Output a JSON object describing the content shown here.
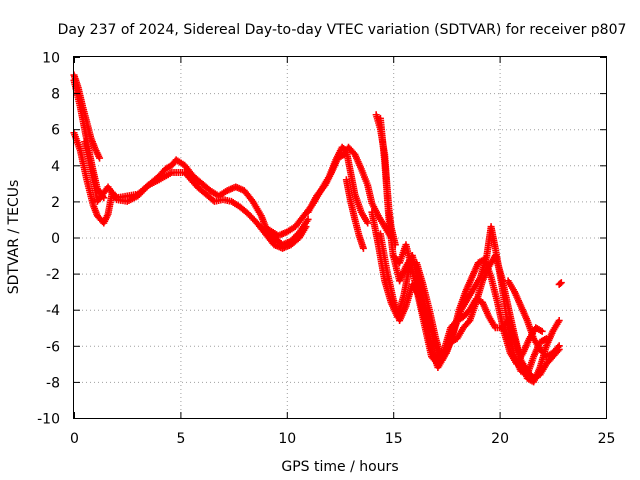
{
  "chart_data": {
    "type": "scatter",
    "title": "Day 237 of 2024, Sidereal Day-to-day VTEC variation (SDTVAR) for receiver p807",
    "xlabel": "GPS time / hours",
    "ylabel": "SDTVAR / TECUs",
    "xlim": [
      0,
      25
    ],
    "ylim": [
      -10,
      10
    ],
    "xticks": [
      0,
      5,
      10,
      15,
      20,
      25
    ],
    "yticks": [
      -10,
      -8,
      -6,
      -4,
      -2,
      0,
      2,
      4,
      6,
      8,
      10
    ],
    "xtick_labels": [
      "0",
      "5",
      "10",
      "15",
      "20",
      "25"
    ],
    "ytick_labels": [
      "-10",
      "-8",
      "-6",
      "-4",
      "-2",
      "0",
      "2",
      "4",
      "6",
      "8",
      "10"
    ],
    "grid": true,
    "marker": "+",
    "series": [
      {
        "name": "SDTVAR",
        "color": "#ff0000",
        "tracks": [
          [
            [
              0.0,
              9.0
            ],
            [
              0.2,
              8.3
            ],
            [
              0.4,
              7.3
            ],
            [
              0.6,
              6.4
            ],
            [
              0.8,
              5.5
            ],
            [
              1.0,
              4.9
            ],
            [
              1.2,
              4.4
            ]
          ],
          [
            [
              0.0,
              8.7
            ],
            [
              0.3,
              7.2
            ],
            [
              0.6,
              5.4
            ],
            [
              0.9,
              3.7
            ],
            [
              1.1,
              2.7
            ],
            [
              1.4,
              2.2
            ]
          ],
          [
            [
              0.0,
              5.8
            ],
            [
              0.3,
              4.8
            ],
            [
              0.6,
              3.2
            ],
            [
              0.9,
              1.8
            ],
            [
              1.1,
              1.2
            ],
            [
              1.4,
              0.8
            ],
            [
              1.6,
              1.3
            ],
            [
              1.8,
              2.5
            ],
            [
              2.0,
              2.2
            ],
            [
              2.5,
              2.3
            ],
            [
              3.0,
              2.4
            ],
            [
              3.3,
              2.7
            ],
            [
              3.6,
              3.0
            ],
            [
              4.0,
              3.4
            ],
            [
              4.3,
              3.8
            ],
            [
              4.6,
              4.0
            ],
            [
              4.8,
              4.3
            ],
            [
              5.2,
              4.0
            ],
            [
              5.6,
              3.4
            ],
            [
              6.0,
              3.0
            ],
            [
              6.4,
              2.6
            ],
            [
              6.8,
              2.3
            ],
            [
              7.2,
              2.6
            ],
            [
              7.6,
              2.8
            ],
            [
              8.0,
              2.6
            ],
            [
              8.4,
              2.0
            ],
            [
              8.8,
              1.2
            ],
            [
              9.0,
              0.6
            ],
            [
              9.4,
              0.0
            ],
            [
              9.8,
              -0.4
            ],
            [
              10.2,
              -0.2
            ],
            [
              10.6,
              0.3
            ],
            [
              11.0,
              1.0
            ]
          ],
          [
            [
              0.5,
              5.3
            ],
            [
              0.9,
              3.3
            ],
            [
              1.1,
              2.0
            ],
            [
              1.6,
              2.8
            ],
            [
              2.0,
              2.1
            ],
            [
              2.5,
              2.0
            ],
            [
              3.0,
              2.3
            ],
            [
              3.5,
              2.9
            ],
            [
              4.0,
              3.2
            ],
            [
              4.6,
              3.6
            ],
            [
              5.2,
              3.6
            ],
            [
              5.8,
              2.8
            ],
            [
              6.2,
              2.4
            ],
            [
              6.6,
              2.0
            ],
            [
              7.0,
              2.1
            ],
            [
              7.4,
              2.0
            ],
            [
              7.8,
              1.7
            ],
            [
              8.2,
              1.3
            ],
            [
              8.6,
              0.8
            ],
            [
              9.0,
              0.2
            ],
            [
              9.4,
              -0.4
            ],
            [
              9.8,
              -0.6
            ],
            [
              10.2,
              -0.4
            ],
            [
              10.6,
              0.0
            ],
            [
              10.9,
              0.6
            ]
          ],
          [
            [
              9.2,
              0.4
            ],
            [
              9.6,
              0.1
            ],
            [
              10.0,
              0.3
            ],
            [
              10.4,
              0.6
            ],
            [
              10.8,
              1.2
            ],
            [
              11.2,
              1.8
            ],
            [
              11.6,
              2.6
            ],
            [
              12.0,
              3.4
            ],
            [
              12.3,
              4.3
            ],
            [
              12.6,
              5.0
            ],
            [
              12.8,
              4.8
            ],
            [
              13.0,
              3.6
            ],
            [
              13.2,
              2.4
            ],
            [
              13.5,
              1.4
            ],
            [
              13.8,
              0.8
            ]
          ],
          [
            [
              11.0,
              1.4
            ],
            [
              11.4,
              2.3
            ],
            [
              11.8,
              2.9
            ],
            [
              12.1,
              3.6
            ],
            [
              12.4,
              4.4
            ],
            [
              12.7,
              4.6
            ],
            [
              12.9,
              5.0
            ],
            [
              13.2,
              4.6
            ],
            [
              13.5,
              3.8
            ],
            [
              13.8,
              2.9
            ],
            [
              14.0,
              1.9
            ],
            [
              14.3,
              1.2
            ],
            [
              14.6,
              0.6
            ],
            [
              14.9,
              0.0
            ]
          ],
          [
            [
              12.8,
              3.2
            ],
            [
              13.0,
              2.0
            ],
            [
              13.2,
              1.0
            ],
            [
              13.4,
              0.1
            ],
            [
              13.6,
              -0.6
            ]
          ],
          [
            [
              14.2,
              6.8
            ],
            [
              14.4,
              6.0
            ],
            [
              14.6,
              4.6
            ],
            [
              14.7,
              3.0
            ],
            [
              14.8,
              1.6
            ],
            [
              14.9,
              0.6
            ],
            [
              15.1,
              -0.4
            ]
          ],
          [
            [
              14.4,
              6.6
            ],
            [
              14.6,
              4.2
            ],
            [
              14.8,
              1.0
            ],
            [
              15.0,
              -1.0
            ],
            [
              15.3,
              -2.4
            ],
            [
              15.6,
              -1.6
            ],
            [
              15.9,
              -1.0
            ],
            [
              16.1,
              -2.0
            ],
            [
              16.3,
              -3.0
            ],
            [
              16.6,
              -4.2
            ],
            [
              16.9,
              -5.6
            ],
            [
              17.2,
              -6.8
            ],
            [
              17.5,
              -6.4
            ],
            [
              17.8,
              -5.4
            ],
            [
              18.1,
              -4.0
            ],
            [
              18.4,
              -3.0
            ],
            [
              18.7,
              -2.2
            ],
            [
              19.0,
              -1.4
            ],
            [
              19.3,
              -1.2
            ],
            [
              19.6,
              -2.2
            ],
            [
              19.9,
              -3.6
            ],
            [
              20.2,
              -5.2
            ],
            [
              20.5,
              -6.4
            ],
            [
              20.8,
              -7.0
            ],
            [
              21.1,
              -6.4
            ],
            [
              21.4,
              -5.6
            ],
            [
              21.7,
              -5.0
            ],
            [
              22.0,
              -5.2
            ]
          ],
          [
            [
              14.0,
              1.4
            ],
            [
              14.3,
              -0.4
            ],
            [
              14.6,
              -2.4
            ],
            [
              14.9,
              -3.6
            ],
            [
              15.2,
              -4.4
            ],
            [
              15.5,
              -3.2
            ],
            [
              15.8,
              -1.4
            ],
            [
              16.1,
              -1.4
            ],
            [
              16.4,
              -2.6
            ],
            [
              16.7,
              -4.0
            ],
            [
              17.0,
              -5.6
            ],
            [
              17.3,
              -6.8
            ],
            [
              17.6,
              -6.0
            ],
            [
              17.9,
              -5.0
            ],
            [
              18.2,
              -4.0
            ],
            [
              18.5,
              -3.4
            ],
            [
              18.8,
              -2.8
            ],
            [
              19.1,
              -2.2
            ],
            [
              19.4,
              -1.0
            ],
            [
              19.6,
              0.6
            ],
            [
              19.8,
              -0.6
            ],
            [
              20.1,
              -2.6
            ],
            [
              20.4,
              -5.0
            ],
            [
              20.7,
              -6.6
            ],
            [
              21.0,
              -7.4
            ],
            [
              21.3,
              -7.6
            ],
            [
              21.6,
              -6.6
            ],
            [
              21.9,
              -5.8
            ],
            [
              22.2,
              -5.6
            ]
          ],
          [
            [
              14.4,
              0.2
            ],
            [
              14.7,
              -1.8
            ],
            [
              15.0,
              -3.4
            ],
            [
              15.3,
              -4.6
            ],
            [
              15.6,
              -3.8
            ],
            [
              15.9,
              -2.6
            ],
            [
              16.2,
              -3.2
            ],
            [
              16.5,
              -4.6
            ],
            [
              16.8,
              -6.2
            ],
            [
              17.1,
              -7.2
            ],
            [
              17.4,
              -6.6
            ],
            [
              17.7,
              -5.8
            ],
            [
              18.0,
              -5.6
            ],
            [
              18.3,
              -5.0
            ],
            [
              18.6,
              -4.6
            ],
            [
              18.9,
              -3.6
            ],
            [
              19.2,
              -2.4
            ],
            [
              19.5,
              -1.6
            ],
            [
              19.8,
              -1.0
            ],
            [
              20.1,
              -2.2
            ],
            [
              20.4,
              -3.8
            ],
            [
              20.7,
              -5.4
            ],
            [
              21.0,
              -6.8
            ],
            [
              21.3,
              -7.8
            ],
            [
              21.6,
              -8.0
            ],
            [
              21.9,
              -7.2
            ],
            [
              22.2,
              -6.0
            ],
            [
              22.5,
              -5.2
            ],
            [
              22.8,
              -4.6
            ]
          ],
          [
            [
              15.0,
              -1.0
            ],
            [
              15.3,
              -1.4
            ],
            [
              15.6,
              -0.4
            ],
            [
              15.9,
              -1.8
            ],
            [
              16.2,
              -3.4
            ],
            [
              16.5,
              -5.0
            ],
            [
              16.8,
              -6.6
            ],
            [
              17.1,
              -7.0
            ],
            [
              17.4,
              -6.2
            ],
            [
              17.7,
              -5.0
            ],
            [
              18.0,
              -4.6
            ],
            [
              18.3,
              -4.4
            ],
            [
              18.6,
              -4.0
            ],
            [
              18.9,
              -3.4
            ],
            [
              19.2,
              -3.6
            ],
            [
              19.5,
              -4.4
            ],
            [
              19.8,
              -5.0
            ],
            [
              20.1,
              -5.0
            ],
            [
              20.4,
              -4.6
            ],
            [
              20.7,
              -5.6
            ],
            [
              21.0,
              -6.8
            ],
            [
              21.3,
              -7.4
            ],
            [
              21.6,
              -7.8
            ],
            [
              21.9,
              -7.6
            ],
            [
              22.2,
              -7.0
            ],
            [
              22.5,
              -6.6
            ],
            [
              22.8,
              -6.2
            ]
          ],
          [
            [
              20.4,
              -2.4
            ],
            [
              20.7,
              -3.0
            ],
            [
              21.0,
              -3.8
            ],
            [
              21.3,
              -4.6
            ],
            [
              21.6,
              -5.6
            ],
            [
              21.9,
              -6.2
            ],
            [
              22.2,
              -6.6
            ],
            [
              22.5,
              -6.4
            ],
            [
              22.8,
              -6.0
            ]
          ],
          [
            [
              22.8,
              -2.6
            ],
            [
              22.9,
              -2.5
            ]
          ]
        ]
      }
    ]
  }
}
